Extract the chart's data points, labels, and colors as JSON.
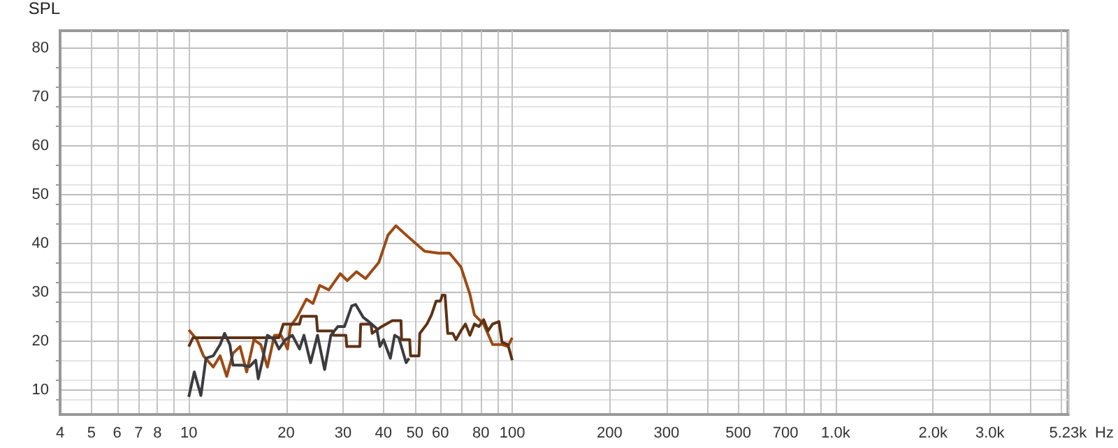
{
  "chart_data": {
    "type": "line",
    "ylabel": "SPL",
    "log": "x",
    "xlabel": "Hz",
    "grid": true,
    "marker": "none",
    "line_style": "solid",
    "xlim": [
      4,
      5230
    ],
    "ylim": [
      5,
      83.5
    ],
    "xticks": [
      4,
      5,
      6,
      7,
      8,
      {
        "value": 9,
        "label": null
      },
      10,
      20,
      30,
      40,
      50,
      60,
      {
        "value": 70,
        "label": null
      },
      80,
      {
        "value": 90,
        "label": null
      },
      100,
      200,
      300,
      {
        "value": 400,
        "label": null
      },
      500,
      {
        "value": 600,
        "label": null
      },
      700,
      {
        "value": 800,
        "label": null
      },
      {
        "value": 900,
        "label": null
      },
      {
        "value": 1000,
        "label": "1.0k"
      },
      {
        "value": 2000,
        "label": "2.0k"
      },
      {
        "value": 3000,
        "label": "3.0k"
      },
      {
        "value": 4000,
        "label": null
      },
      {
        "value": 5000,
        "label": null
      },
      {
        "value": 5230,
        "label": "5.23k"
      }
    ],
    "yticks": [
      10,
      20,
      30,
      40,
      50,
      60,
      70,
      80
    ],
    "series": [
      {
        "color": "#9c4a14",
        "x": [
          10,
          10.6,
          11.1,
          11.9,
          12.5,
          13.1,
          13.7,
          14.4,
          15.1,
          15.9,
          16.7,
          17.5,
          18.4,
          19.3,
          20.2,
          20.6,
          21.6,
          23.1,
          24.2,
          25.4,
          27.1,
          29.4,
          30.9,
          33,
          35.2,
          38.7,
          41.3,
          43.7,
          47,
          53.6,
          59,
          64,
          69.4,
          74,
          76.4,
          81.6,
          87,
          93,
          97,
          100
        ],
        "values": [
          22.3,
          20.3,
          17,
          14.7,
          17,
          12.8,
          17.5,
          18.9,
          13.7,
          20.3,
          19.3,
          14.7,
          21.2,
          21.2,
          18.4,
          23,
          24.9,
          28.6,
          27.7,
          31.4,
          30.5,
          33.8,
          32.4,
          34.2,
          32.8,
          36.1,
          41.7,
          43.6,
          41.7,
          38.4,
          38,
          38,
          35.2,
          29.6,
          25.4,
          23.5,
          19.3,
          19.3,
          18.9,
          20.7
        ]
      },
      {
        "color": "#5e3214",
        "x": [
          10,
          10.3,
          19,
          19.6,
          22,
          22.3,
          24.8,
          25,
          27.8,
          28,
          30.6,
          30.8,
          33.8,
          34,
          36.6,
          36.9,
          39.5,
          42.6,
          45.3,
          45.5,
          48.2,
          48.5,
          51.5,
          51.8,
          54.5,
          56.3,
          58.2,
          60,
          60.8,
          62,
          63.2,
          65.5,
          67,
          69.4,
          71.7,
          74,
          76.4,
          78.9,
          81.6,
          84.2,
          87,
          91,
          93,
          97,
          100
        ],
        "values": [
          18.9,
          20.7,
          20.7,
          23.5,
          23.5,
          25.1,
          25.1,
          22.1,
          22.1,
          21.2,
          21.2,
          18.9,
          18.9,
          23.5,
          23.5,
          21.6,
          23,
          24.2,
          24.2,
          20.3,
          20.3,
          17,
          17,
          21.6,
          23.5,
          25.4,
          28.2,
          28.2,
          29.4,
          29.4,
          21.6,
          21.6,
          20.3,
          22.1,
          23.5,
          21.2,
          23.5,
          23,
          24.4,
          22.1,
          23.5,
          24,
          19.8,
          19.3,
          16.1
        ]
      },
      {
        "color": "#3c3c40",
        "x": [
          10,
          10.4,
          10.9,
          11.3,
          11.9,
          12.5,
          12.9,
          13.4,
          13.7,
          14.6,
          15.4,
          16.1,
          16.4,
          16.9,
          17.5,
          18.4,
          19,
          19.9,
          20.9,
          22,
          22.7,
          23.8,
          25,
          26.3,
          27.5,
          28.9,
          30.3,
          31.9,
          32.8,
          34.6,
          36,
          38.1,
          39,
          40,
          42,
          43.3,
          44.6,
          47,
          48
        ],
        "values": [
          8.6,
          13.7,
          8.9,
          16.5,
          17,
          19.3,
          21.6,
          19.3,
          15.1,
          15.1,
          14.8,
          16.1,
          12.3,
          16.1,
          21.2,
          20.3,
          18.4,
          20.3,
          21.2,
          18.4,
          21.2,
          15.6,
          21.2,
          14.2,
          21.2,
          23,
          23,
          27.2,
          27.5,
          24.9,
          24,
          22.6,
          18.9,
          20.3,
          16.5,
          21.2,
          20.7,
          15.6,
          16.5
        ]
      }
    ]
  }
}
